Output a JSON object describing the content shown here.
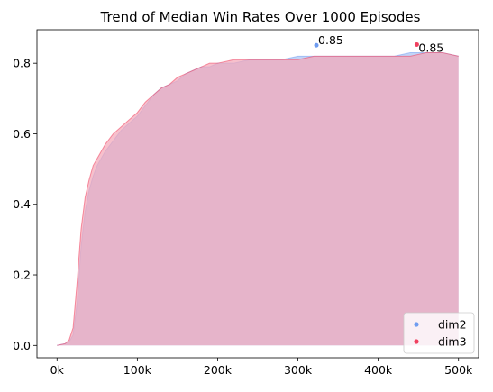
{
  "chart_data": {
    "type": "area",
    "title": "Trend of Median Win Rates Over 1000 Episodes",
    "xlabel": "",
    "ylabel": "",
    "xlim": [
      -25000,
      525000
    ],
    "ylim": [
      -0.035,
      0.895
    ],
    "xticks": [
      0,
      100000,
      200000,
      300000,
      400000,
      500000
    ],
    "xtick_labels": [
      "0k",
      "100k",
      "200k",
      "300k",
      "400k",
      "500k"
    ],
    "yticks": [
      0.0,
      0.2,
      0.4,
      0.6,
      0.8
    ],
    "ytick_labels": [
      "0.0",
      "0.2",
      "0.4",
      "0.6",
      "0.8"
    ],
    "grid": false,
    "legend_position": "bottom-right",
    "series": [
      {
        "name": "dim2",
        "color": "#6f9cf0",
        "fill": "#aac4f4",
        "x": [
          0,
          10000,
          15000,
          20000,
          25000,
          30000,
          35000,
          40000,
          45000,
          50000,
          60000,
          70000,
          80000,
          90000,
          100000,
          110000,
          120000,
          130000,
          140000,
          150000,
          160000,
          170000,
          180000,
          190000,
          200000,
          220000,
          240000,
          260000,
          280000,
          300000,
          320000,
          340000,
          360000,
          380000,
          400000,
          420000,
          440000,
          460000,
          480000,
          500000
        ],
        "values": [
          0.0,
          0.005,
          0.01,
          0.03,
          0.12,
          0.28,
          0.38,
          0.44,
          0.48,
          0.51,
          0.55,
          0.58,
          0.61,
          0.63,
          0.65,
          0.68,
          0.71,
          0.73,
          0.74,
          0.75,
          0.77,
          0.78,
          0.79,
          0.79,
          0.8,
          0.8,
          0.81,
          0.81,
          0.81,
          0.82,
          0.82,
          0.82,
          0.82,
          0.82,
          0.82,
          0.82,
          0.83,
          0.83,
          0.83,
          0.82
        ]
      },
      {
        "name": "dim3",
        "color": "#f0405f",
        "fill": "#f4a7b8",
        "x": [
          0,
          10000,
          15000,
          20000,
          25000,
          30000,
          35000,
          40000,
          45000,
          50000,
          60000,
          70000,
          80000,
          90000,
          100000,
          110000,
          120000,
          130000,
          140000,
          150000,
          160000,
          170000,
          180000,
          190000,
          200000,
          220000,
          240000,
          260000,
          280000,
          300000,
          320000,
          340000,
          360000,
          380000,
          400000,
          420000,
          440000,
          460000,
          480000,
          500000
        ],
        "values": [
          0.0,
          0.005,
          0.015,
          0.05,
          0.18,
          0.33,
          0.42,
          0.47,
          0.51,
          0.53,
          0.57,
          0.6,
          0.62,
          0.64,
          0.66,
          0.69,
          0.71,
          0.73,
          0.74,
          0.76,
          0.77,
          0.78,
          0.79,
          0.8,
          0.8,
          0.81,
          0.81,
          0.81,
          0.81,
          0.81,
          0.82,
          0.82,
          0.82,
          0.82,
          0.82,
          0.82,
          0.82,
          0.83,
          0.83,
          0.82
        ]
      }
    ],
    "annotations": [
      {
        "series": "dim2",
        "x": 323000,
        "y": 0.851,
        "label": "0.85"
      },
      {
        "series": "dim3",
        "x": 448000,
        "y": 0.853,
        "label": "0.85"
      }
    ]
  }
}
